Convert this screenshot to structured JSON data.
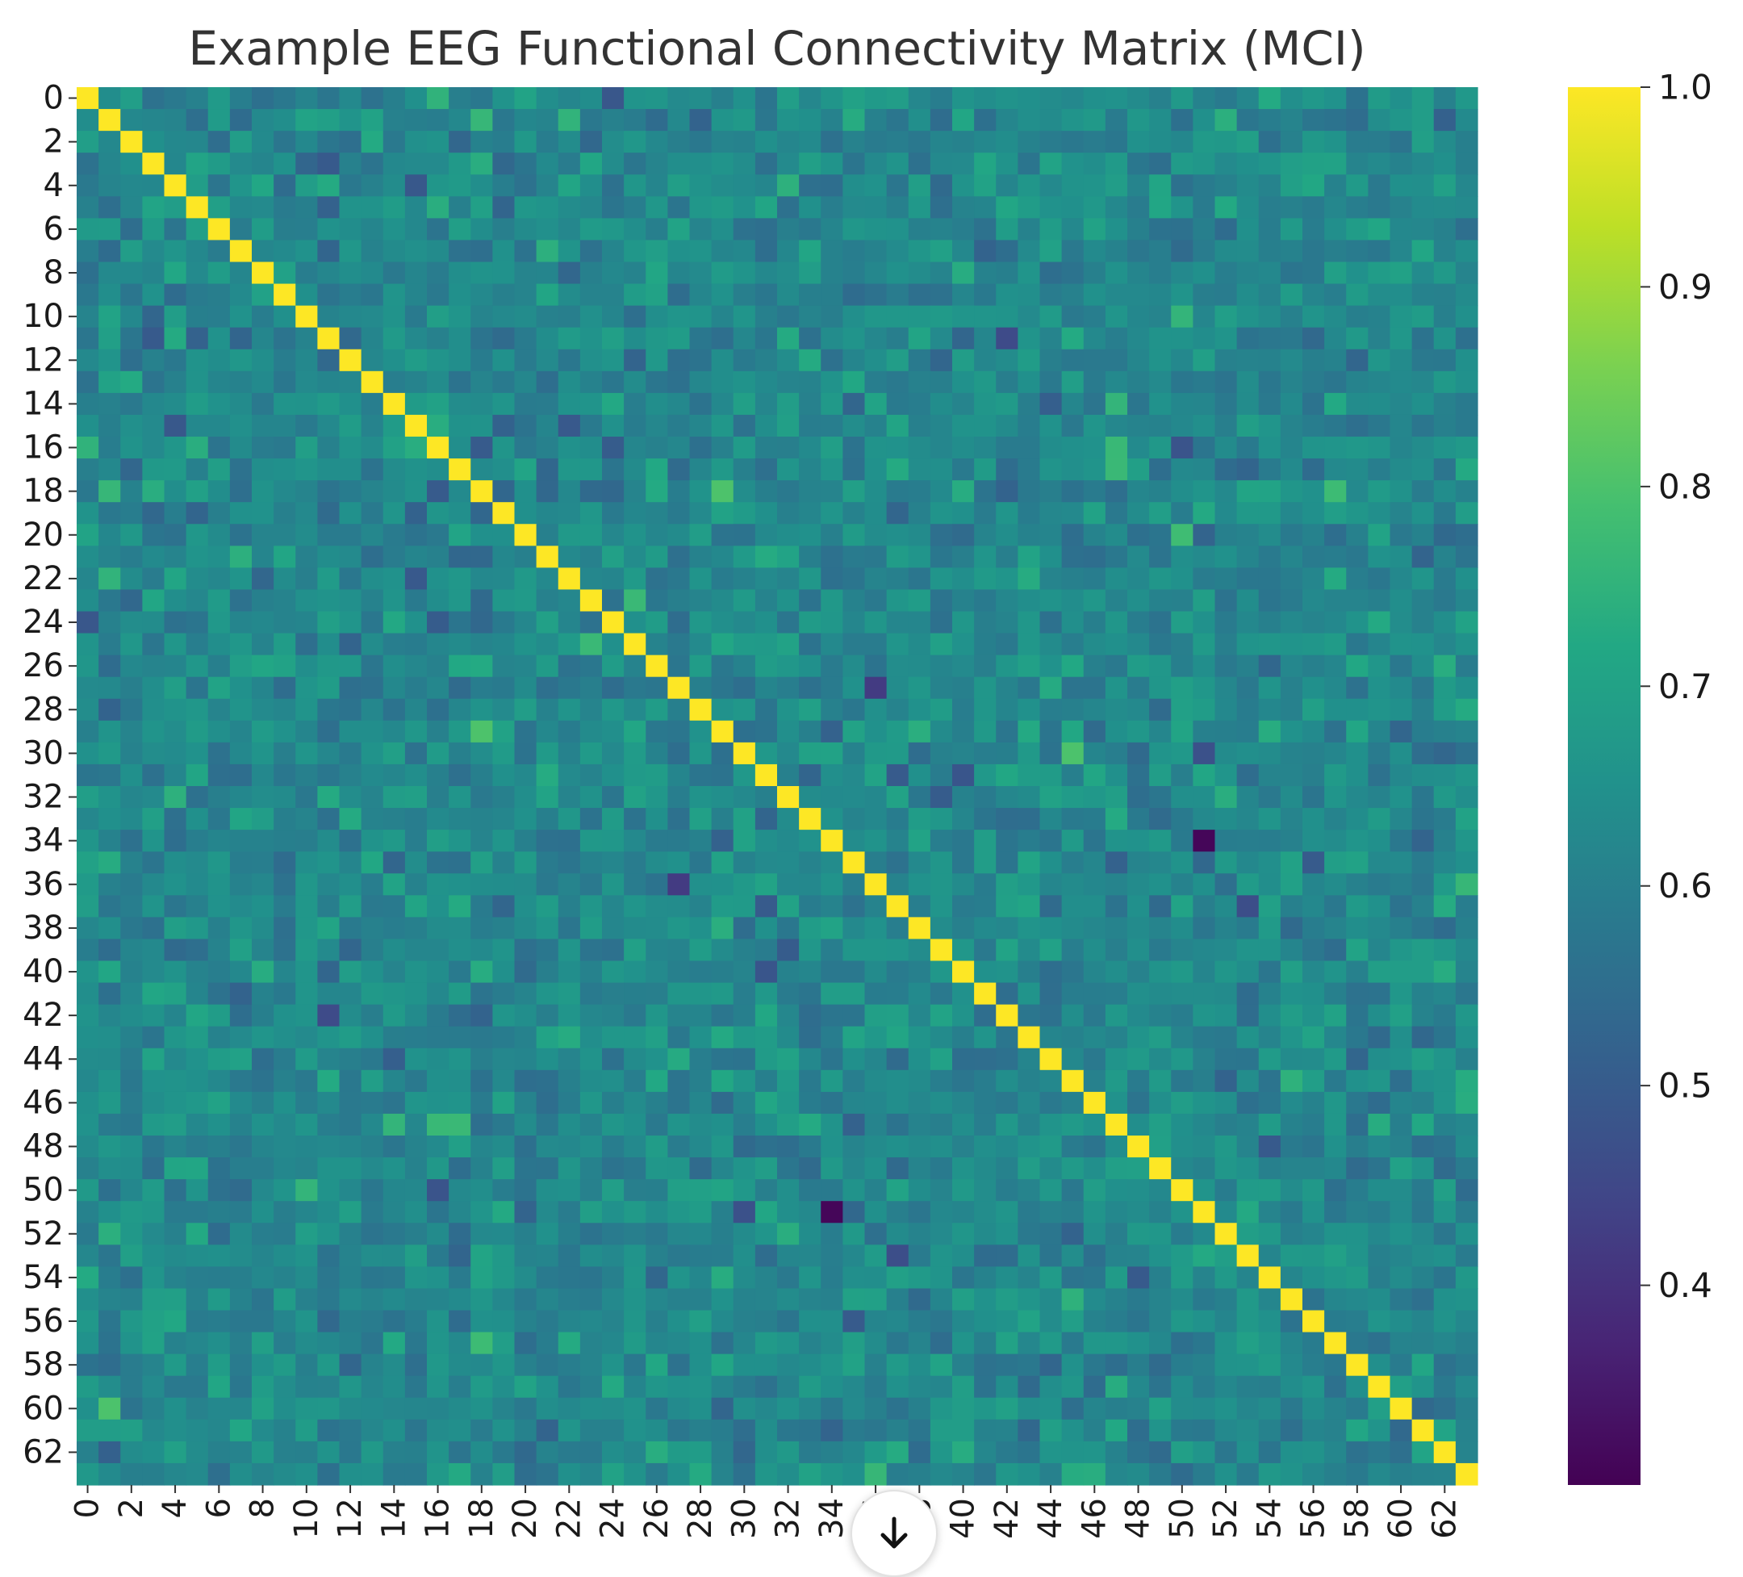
{
  "chart_data": {
    "type": "heatmap",
    "title": "Example EEG Functional Connectivity Matrix (MCI)",
    "xlabel": "",
    "ylabel": "",
    "n": 64,
    "row_tick_labels": [
      "0",
      "2",
      "4",
      "6",
      "8",
      "10",
      "12",
      "14",
      "16",
      "18",
      "20",
      "22",
      "24",
      "26",
      "28",
      "30",
      "32",
      "34",
      "36",
      "38",
      "40",
      "42",
      "44",
      "46",
      "48",
      "50",
      "52",
      "54",
      "56",
      "58",
      "60",
      "62"
    ],
    "col_tick_labels": [
      "0",
      "2",
      "4",
      "6",
      "8",
      "10",
      "12",
      "14",
      "16",
      "18",
      "20",
      "22",
      "24",
      "26",
      "28",
      "30",
      "32",
      "34",
      "36",
      "38",
      "40",
      "42",
      "44",
      "46",
      "48",
      "50",
      "52",
      "54",
      "56",
      "58",
      "60",
      "62"
    ],
    "diagonal_value": 1.0,
    "typical_off_diagonal_range": [
      0.5,
      0.75
    ],
    "notable_cells": [
      {
        "row": 34,
        "col": 51,
        "value": 0.31
      },
      {
        "row": 51,
        "col": 34,
        "value": 0.31
      },
      {
        "row": 27,
        "col": 36,
        "value": 0.42
      },
      {
        "row": 36,
        "col": 27,
        "value": 0.42
      },
      {
        "row": 30,
        "col": 45,
        "value": 0.8
      },
      {
        "row": 20,
        "col": 50,
        "value": 0.78
      },
      {
        "row": 60,
        "col": 1,
        "value": 0.8
      }
    ],
    "colormap": "viridis",
    "colorbar": {
      "min": 0.3,
      "max": 1.0,
      "tick_labels": [
        "1.0",
        "0.9",
        "0.8",
        "0.7",
        "0.6",
        "0.5",
        "0.4"
      ]
    },
    "grid": false
  },
  "ui": {
    "scroll_button_icon": "arrow-down-icon"
  },
  "colors": {
    "text": "#333333",
    "viridis_low": "#440154",
    "viridis_high": "#fde725"
  }
}
